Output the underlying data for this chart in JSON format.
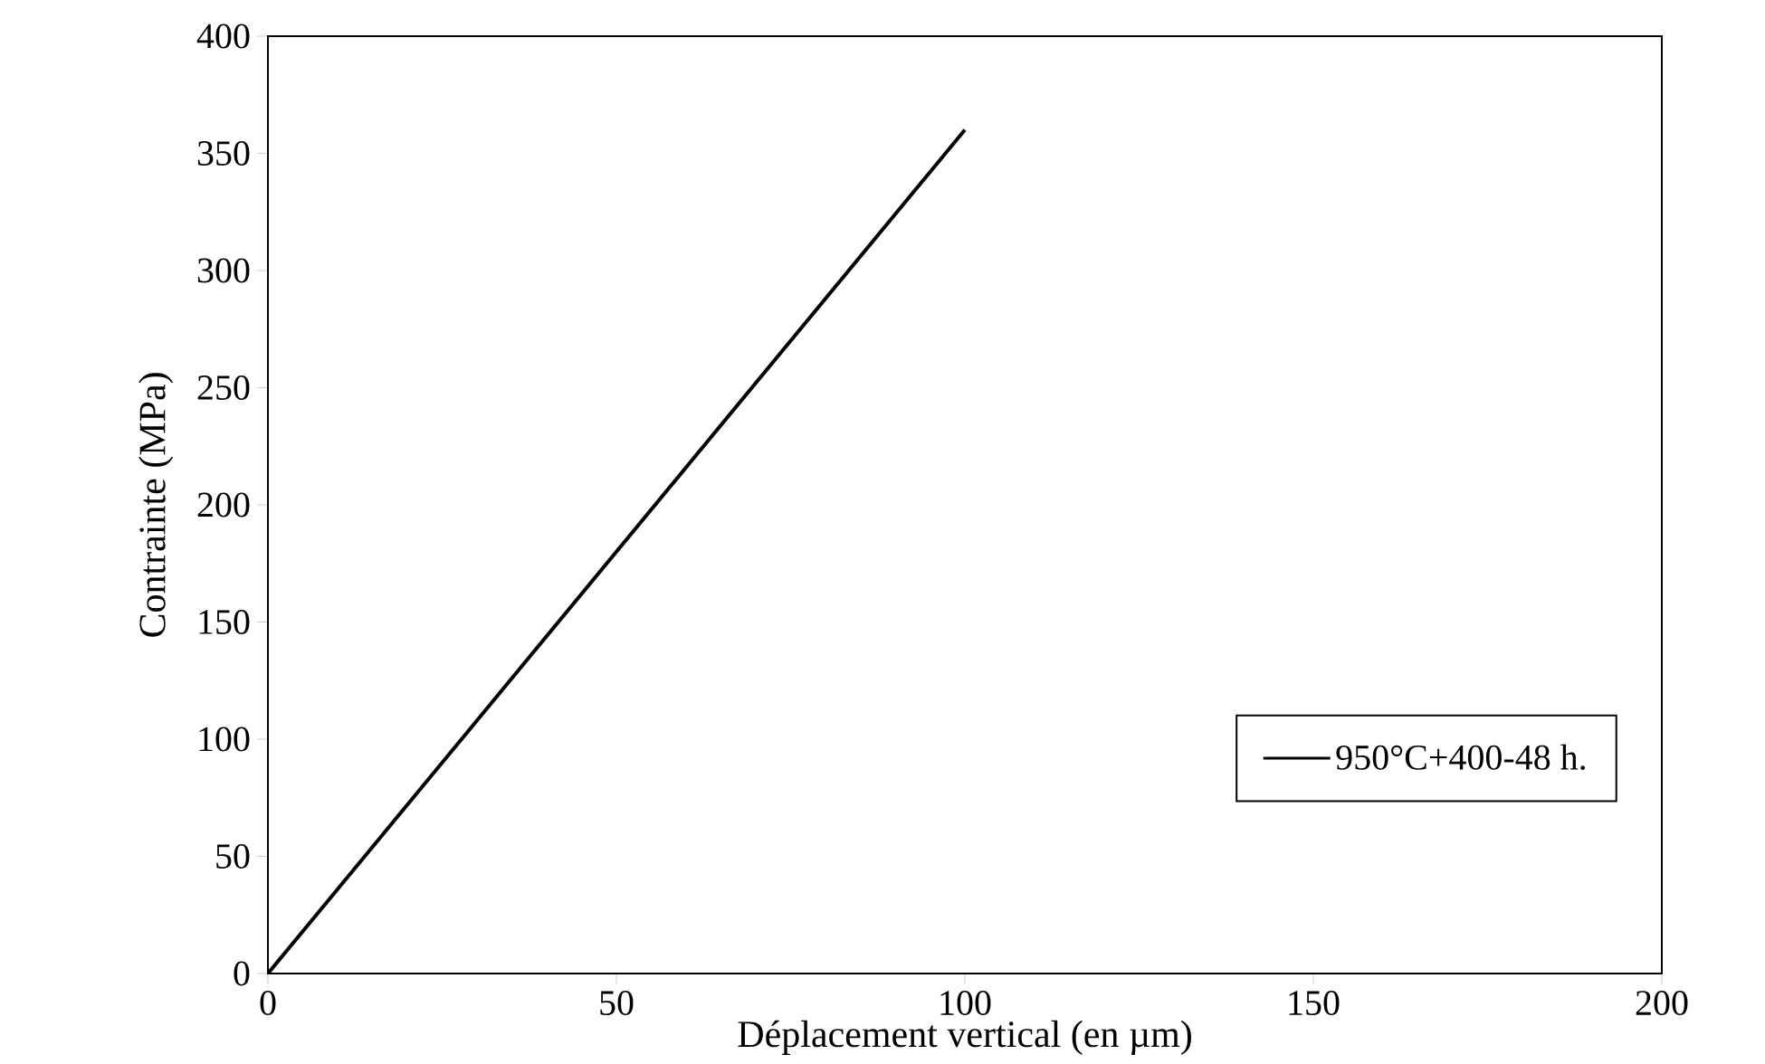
{
  "chart_data": {
    "type": "line",
    "xlabel": "Déplacement vertical (en µm)",
    "ylabel": "Contrainte (MPa)",
    "series": [
      {
        "name": "950°C+400-48 h.",
        "color": "#000000",
        "x": [
          0,
          100
        ],
        "values": [
          0,
          360
        ]
      }
    ],
    "xlim": [
      0,
      200
    ],
    "ylim": [
      0,
      400
    ],
    "xticks": [
      0,
      50,
      100,
      150,
      200
    ],
    "yticks": [
      0,
      50,
      100,
      150,
      200,
      250,
      300,
      350,
      400
    ],
    "legend": "bottom right",
    "grid": false,
    "marker": "none",
    "line_style": "solid"
  }
}
